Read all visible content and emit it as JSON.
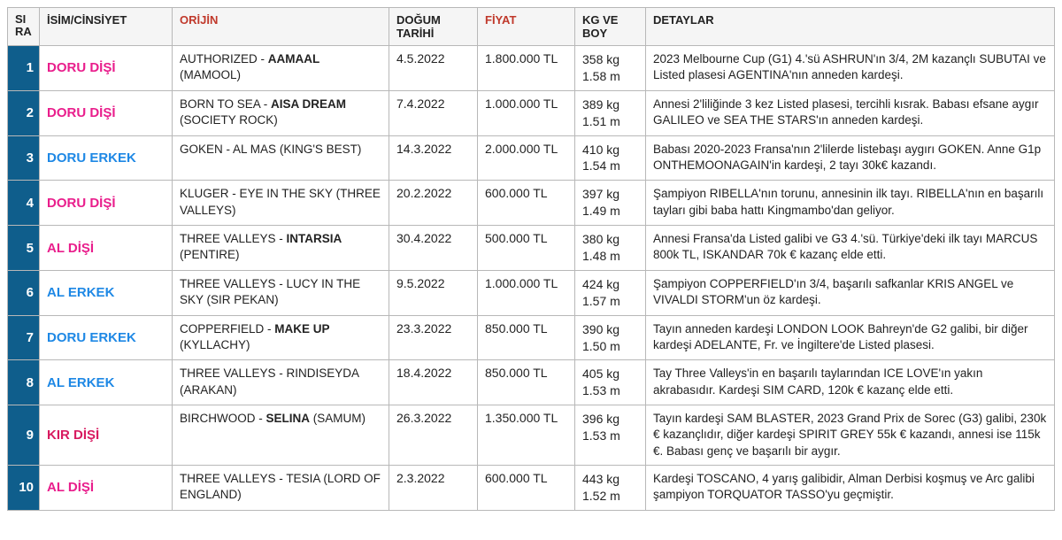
{
  "colors": {
    "header_bg": "#f5f5f5",
    "sira_bg": "#0f5e8c",
    "sira_fg": "#ffffff",
    "accent_header": "#c0392b",
    "border": "#b8b8b8",
    "gender_female": "#e91e8c",
    "gender_male": "#1e88e5",
    "gender_kir": "#d81b60"
  },
  "headers": {
    "sira": "SIRA",
    "isim": "İSİM/CİNSİYET",
    "orijin": "ORİJİN",
    "dogum": "DOĞUM TARİHİ",
    "fiyat": "FİYAT",
    "kgboy": "KG VE BOY",
    "detay": "DETAYLAR"
  },
  "rows": [
    {
      "sira": "1",
      "isim": "DORU DİŞİ",
      "isim_color": "#e91e8c",
      "sire": "AUTHORIZED",
      "dam": "AAMAAL",
      "damsire": "MAMOOL",
      "dogum": "4.5.2022",
      "fiyat": "1.800.000 TL",
      "kg": "358 kg",
      "boy": "1.58 m",
      "detay": "2023 Melbourne Cup (G1) 4.'sü ASHRUN'ın 3/4, 2M kazançlı SUBUTAI ve Listed plasesi AGENTINA'nın anneden kardeşi."
    },
    {
      "sira": "2",
      "isim": "DORU DİŞİ",
      "isim_color": "#e91e8c",
      "sire": "BORN TO SEA",
      "dam": "AISA DREAM",
      "damsire": "SOCIETY ROCK",
      "dogum": "7.4.2022",
      "fiyat": "1.000.000 TL",
      "kg": "389 kg",
      "boy": "1.51 m",
      "detay": "Annesi 2'liliğinde 3 kez Listed plasesi, tercihli kısrak. Babası efsane aygır GALILEO ve SEA THE STARS'ın anneden kardeşi."
    },
    {
      "sira": "3",
      "isim": "DORU ERKEK",
      "isim_color": "#1e88e5",
      "sire": "GOKEN",
      "dam": "AL MAS",
      "dam_plain": true,
      "damsire": "KING'S BEST",
      "dogum": "14.3.2022",
      "fiyat": "2.000.000 TL",
      "kg": "410 kg",
      "boy": "1.54 m",
      "detay": "Babası 2020-2023 Fransa'nın 2'lilerde listebaşı aygırı GOKEN. Anne G1p ONTHEMOONAGAIN'in kardeşi, 2 tayı 30k€ kazandı."
    },
    {
      "sira": "4",
      "isim": "DORU DİŞİ",
      "isim_color": "#e91e8c",
      "sire": "KLUGER",
      "dam": "EYE IN THE SKY",
      "dam_plain": true,
      "damsire": "THREE VALLEYS",
      "dogum": "20.2.2022",
      "fiyat": "600.000 TL",
      "kg": "397 kg",
      "boy": "1.49 m",
      "detay": "Şampiyon RIBELLA'nın torunu, annesinin ilk tayı. RIBELLA'nın en başarılı tayları gibi baba hattı Kingmambo'dan geliyor."
    },
    {
      "sira": "5",
      "isim": "AL DİŞİ",
      "isim_color": "#e91e8c",
      "sire": "THREE VALLEYS",
      "dam": "INTARSIA",
      "damsire": "PENTIRE",
      "dogum": "30.4.2022",
      "fiyat": "500.000 TL",
      "kg": "380 kg",
      "boy": "1.48 m",
      "detay": "Annesi Fransa'da Listed galibi ve G3 4.'sü. Türkiye'deki ilk tayı MARCUS 800k TL, ISKANDAR 70k € kazanç elde etti."
    },
    {
      "sira": "6",
      "isim": "AL ERKEK",
      "isim_color": "#1e88e5",
      "sire": "THREE VALLEYS",
      "dam": "LUCY IN THE SKY",
      "dam_plain": true,
      "damsire": "SIR PEKAN",
      "dogum": "9.5.2022",
      "fiyat": "1.000.000 TL",
      "kg": "424 kg",
      "boy": "1.57 m",
      "detay": "Şampiyon COPPERFIELD'ın 3/4, başarılı safkanlar KRIS ANGEL ve VIVALDI STORM'un öz kardeşi."
    },
    {
      "sira": "7",
      "isim": "DORU ERKEK",
      "isim_color": "#1e88e5",
      "sire": "COPPERFIELD",
      "dam": "MAKE UP",
      "damsire": "KYLLACHY",
      "dogum": "23.3.2022",
      "fiyat": "850.000 TL",
      "kg": "390 kg",
      "boy": "1.50 m",
      "detay": "Tayın anneden kardeşi LONDON LOOK Bahreyn'de G2 galibi, bir diğer kardeşi ADELANTE, Fr. ve İngiltere'de Listed plasesi."
    },
    {
      "sira": "8",
      "isim": "AL ERKEK",
      "isim_color": "#1e88e5",
      "sire": "THREE VALLEYS",
      "dam": "RINDISEYDA",
      "dam_plain": true,
      "damsire": "ARAKAN",
      "dogum": "18.4.2022",
      "fiyat": "850.000 TL",
      "kg": "405 kg",
      "boy": "1.53 m",
      "detay": "Tay Three Valleys'in en başarılı taylarından ICE LOVE'ın yakın akrabasıdır. Kardeşi SIM CARD, 120k € kazanç elde etti."
    },
    {
      "sira": "9",
      "isim": "KIR DİŞİ",
      "isim_color": "#d81b60",
      "sire": "BIRCHWOOD",
      "dam": "SELINA",
      "damsire": "SAMUM",
      "dogum": "26.3.2022",
      "fiyat": "1.350.000 TL",
      "kg": "396 kg",
      "boy": "1.53 m",
      "detay": "Tayın kardeşi SAM BLASTER, 2023 Grand Prix de Sorec (G3) galibi, 230k € kazançlıdır, diğer kardeşi SPIRIT GREY 55k € kazandı, annesi ise 115k €. Babası genç ve başarılı bir aygır."
    },
    {
      "sira": "10",
      "isim": "AL DİŞİ",
      "isim_color": "#e91e8c",
      "sire": "THREE VALLEYS",
      "dam": "TESIA",
      "dam_plain": true,
      "damsire": "LORD OF ENGLAND",
      "dogum": "2.3.2022",
      "fiyat": "600.000 TL",
      "kg": "443 kg",
      "boy": "1.52 m",
      "detay": "Kardeşi TOSCANO, 4 yarış galibidir, Alman Derbisi koşmuş ve Arc galibi şampiyon TORQUATOR TASSO'yu geçmiştir."
    }
  ]
}
